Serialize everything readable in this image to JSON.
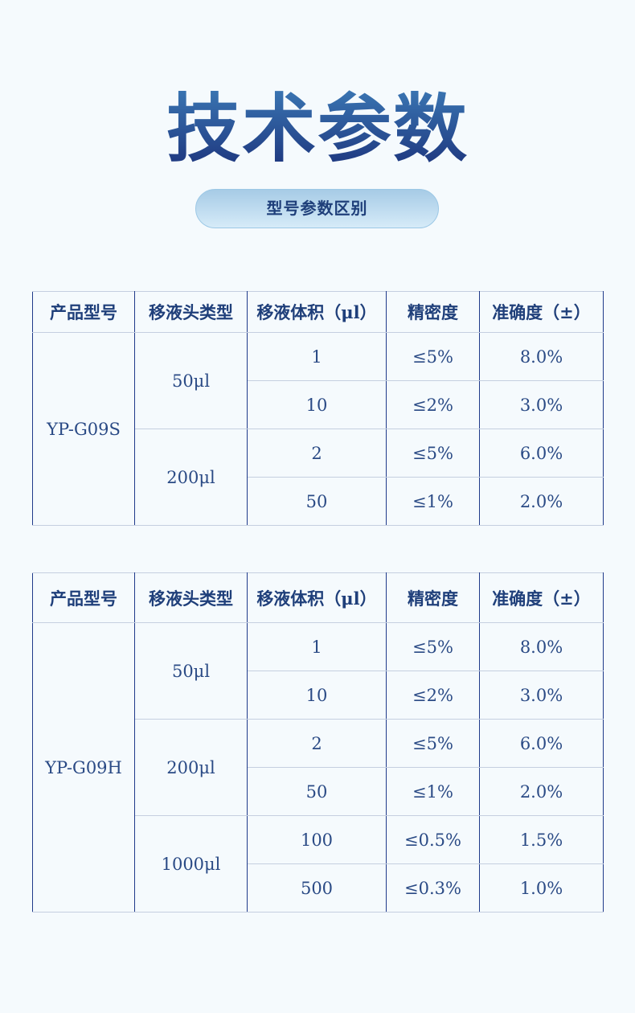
{
  "title": "技术参数",
  "subtitle": "型号参数区别",
  "headers": [
    "产品型号",
    "移液头类型",
    "移液体积（μl）",
    "精密度",
    "准确度（±）"
  ],
  "tables": [
    {
      "model": "YP-G09S",
      "groups": [
        {
          "tip": "50μl",
          "rows": [
            {
              "volume": "1",
              "precision": "≤5%",
              "accuracy": "8.0%"
            },
            {
              "volume": "10",
              "precision": "≤2%",
              "accuracy": "3.0%"
            }
          ]
        },
        {
          "tip": "200μl",
          "rows": [
            {
              "volume": "2",
              "precision": "≤5%",
              "accuracy": "6.0%"
            },
            {
              "volume": "50",
              "precision": "≤1%",
              "accuracy": "2.0%"
            }
          ]
        }
      ]
    },
    {
      "model": "YP-G09H",
      "groups": [
        {
          "tip": "50μl",
          "rows": [
            {
              "volume": "1",
              "precision": "≤5%",
              "accuracy": "8.0%"
            },
            {
              "volume": "10",
              "precision": "≤2%",
              "accuracy": "3.0%"
            }
          ]
        },
        {
          "tip": "200μl",
          "rows": [
            {
              "volume": "2",
              "precision": "≤5%",
              "accuracy": "6.0%"
            },
            {
              "volume": "50",
              "precision": "≤1%",
              "accuracy": "2.0%"
            }
          ]
        },
        {
          "tip": "1000μl",
          "rows": [
            {
              "volume": "100",
              "precision": "≤0.5%",
              "accuracy": "1.5%"
            },
            {
              "volume": "500",
              "precision": "≤0.3%",
              "accuracy": "1.0%"
            }
          ]
        }
      ]
    }
  ]
}
